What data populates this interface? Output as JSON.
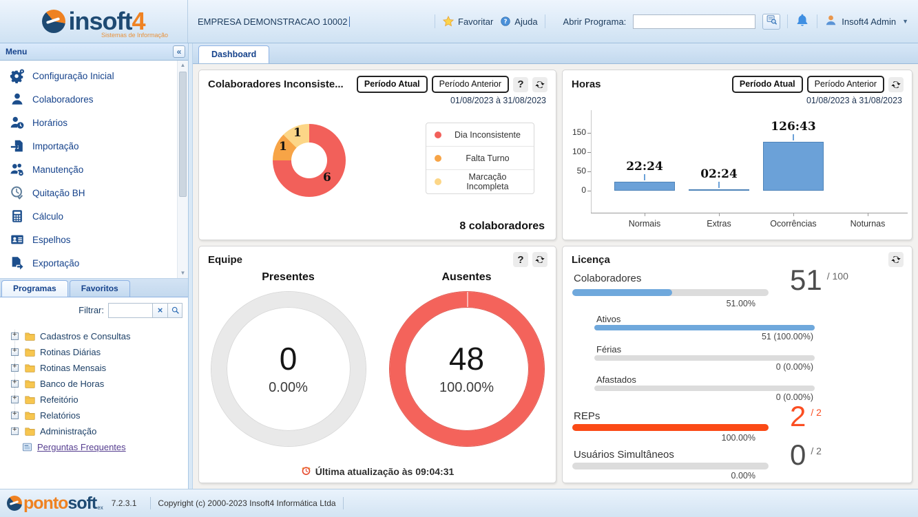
{
  "ui": {
    "help_label": "?"
  },
  "header": {
    "logo": {
      "part_in": "in",
      "part_soft": "soft",
      "part_4": "4",
      "tagline": "Sistemas de Informação"
    },
    "company": "EMPRESA DEMONSTRACAO 10002",
    "favorite_label": "Favoritar",
    "help_label": "Ajuda",
    "open_program_label": "Abrir Programa:",
    "open_program_value": "",
    "user_name": "Insoft4 Admin"
  },
  "sidebar": {
    "menu_title": "Menu",
    "collapse_glyph": "«",
    "menu_items": [
      {
        "icon": "gears",
        "label": "Configuração Inicial"
      },
      {
        "icon": "person",
        "label": "Colaboradores"
      },
      {
        "icon": "person-clock",
        "label": "Horários"
      },
      {
        "icon": "import",
        "label": "Importação"
      },
      {
        "icon": "people-gear",
        "label": "Manutenção"
      },
      {
        "icon": "clock-check",
        "label": "Quitação BH"
      },
      {
        "icon": "calculator",
        "label": "Cálculo"
      },
      {
        "icon": "id-card",
        "label": "Espelhos"
      },
      {
        "icon": "export",
        "label": "Exportação"
      },
      {
        "icon": "doc",
        "label": ""
      }
    ],
    "tabs": [
      {
        "label": "Programas",
        "active": true
      },
      {
        "label": "Favoritos",
        "active": false
      }
    ],
    "filter_label": "Filtrar:",
    "filter_value": "",
    "tree_items": [
      {
        "icon": "folder",
        "label": "Cadastros e Consultas"
      },
      {
        "icon": "folder",
        "label": "Rotinas Diárias"
      },
      {
        "icon": "folder",
        "label": "Rotinas Mensais"
      },
      {
        "icon": "folder",
        "label": "Banco de Horas"
      },
      {
        "icon": "folder",
        "label": "Refeitório"
      },
      {
        "icon": "folder",
        "label": "Relatórios"
      },
      {
        "icon": "folder",
        "label": "Administração"
      },
      {
        "icon": "faq",
        "label": "Perguntas Frequentes",
        "leaf": true
      }
    ]
  },
  "main": {
    "tab_label": "Dashboard",
    "period_buttons": {
      "current": "Período Atual",
      "previous": "Período Anterior"
    },
    "panels": {
      "inconsistentes": {
        "title": "Colaboradores Inconsiste...",
        "date_range": "01/08/2023 à 31/08/2023",
        "total_label": "8 colaboradores",
        "chart": {
          "type": "donut",
          "total": 8,
          "segments": [
            {
              "label": "Dia Inconsistente",
              "value": 6,
              "color": "#f2605a"
            },
            {
              "label": "Falta Turno",
              "value": 1,
              "color": "#f7a446"
            },
            {
              "label": "Marcação Incompleta",
              "value": 1,
              "color": "#fcd687"
            }
          ]
        }
      },
      "horas": {
        "title": "Horas",
        "date_range": "01/08/2023 à 31/08/2023",
        "chart": {
          "type": "bar",
          "color": "#6ba1d8",
          "categories": [
            "Normais",
            "Extras",
            "Ocorrências",
            "Noturnas"
          ],
          "values": [
            22.4,
            2.4,
            126.72,
            0
          ],
          "labels": [
            "22:24",
            "02:24",
            "126:43",
            ""
          ],
          "yticks": [
            150,
            100,
            50,
            0
          ],
          "ymax": 150
        }
      },
      "equipe": {
        "title": "Equipe",
        "groups": [
          {
            "name": "Presentes",
            "count": "0",
            "percent": "0.00%",
            "color": "#e9e9e9",
            "edge": "#d8d8d8"
          },
          {
            "name": "Ausentes",
            "count": "48",
            "percent": "100.00%",
            "color": "#f4635b",
            "edge": "#e05850"
          }
        ],
        "last_update": "Última atualização às 09:04:31"
      },
      "licenca": {
        "title": "Licença",
        "items": [
          {
            "label": "Colaboradores",
            "indent": false,
            "fill": 51,
            "color": "#6fa8dc",
            "pct_text": "51.00%",
            "big": "51",
            "denom": "/ 100",
            "big_color": "#4d4d4d"
          },
          {
            "label": "Ativos",
            "indent": true,
            "fill": 100,
            "color": "#6fa8dc",
            "pct_text": "51 (100.00%)"
          },
          {
            "label": "Férias",
            "indent": true,
            "fill": 0,
            "color": "#6fa8dc",
            "pct_text": "0 (0.00%)"
          },
          {
            "label": "Afastados",
            "indent": true,
            "fill": 0,
            "color": "#6fa8dc",
            "pct_text": "0 (0.00%)"
          },
          {
            "label": "REPs",
            "indent": false,
            "fill": 100,
            "color": "#fb4a16",
            "pct_text": "100.00%",
            "big": "2",
            "denom": "/ 2",
            "big_color": "#fb4e22"
          },
          {
            "label": "Usuários Simultâneos",
            "indent": false,
            "fill": 0,
            "color": "#6fa8dc",
            "pct_text": "0.00%",
            "big": "0",
            "denom": "/ 2",
            "big_color": "#4d4d4d"
          }
        ]
      }
    }
  },
  "footer": {
    "logo_ponto": "ponto",
    "logo_soft": "soft",
    "logo_sub": "ex",
    "version": "7.2.3.1",
    "copyright": "Copyright (c) 2000-2023 Insoft4 Informática Ltda"
  }
}
